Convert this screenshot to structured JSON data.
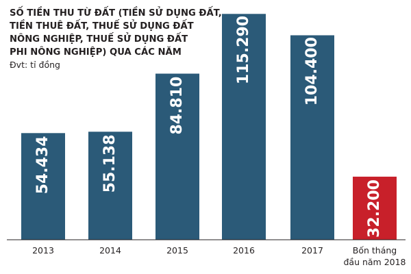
{
  "chart_data": {
    "type": "bar",
    "title_lines": [
      "SỐ TIỀN THU TỪ ĐẤT (TIỀN SỬ DỤNG ĐẤT,",
      "TIỀN THUÊ ĐẤT, THUẾ SỬ DỤNG ĐẤT",
      "NÔNG NGHIỆP, THUẾ SỬ DỤNG ĐẤT",
      "PHI NÔNG NGHIỆP) QUA CÁC NĂM"
    ],
    "unit_label": "Đvt: tỉ đồng",
    "categories": [
      "2013",
      "2014",
      "2015",
      "2016",
      "2017",
      "Bốn tháng đầu năm 2018"
    ],
    "category_label_lines": [
      [
        "2013"
      ],
      [
        "2014"
      ],
      [
        "2015"
      ],
      [
        "2016"
      ],
      [
        "2017"
      ],
      [
        "Bốn tháng",
        "đầu năm 2018"
      ]
    ],
    "values": [
      54434,
      55138,
      84810,
      115290,
      104400,
      32200
    ],
    "value_labels": [
      "54.434",
      "55.138",
      "84.810",
      "115.290",
      "104.400",
      "32.200"
    ],
    "colors": [
      "#2b5a78",
      "#2b5a78",
      "#2b5a78",
      "#2b5a78",
      "#2b5a78",
      "#c8202a"
    ],
    "ylim": [
      0,
      121000
    ],
    "grid": false,
    "legend": "none"
  }
}
